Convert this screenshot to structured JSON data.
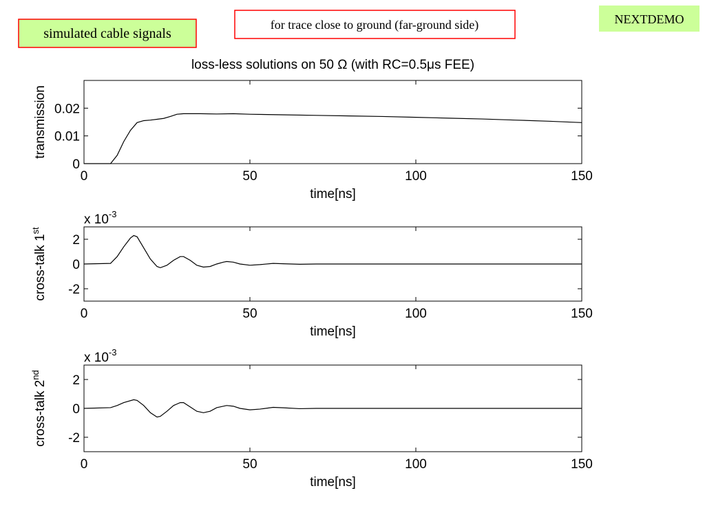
{
  "slide": {
    "label": "simulated cable signals",
    "note": "for trace close to ground (far-ground side)",
    "tag": "NEXTDEMO"
  },
  "chart_data": [
    {
      "type": "line",
      "title": "loss-less solutions on 50 Ω (with RC=0.5μs FEE)",
      "ylabel": "transmission",
      "xlabel": "time[ns]",
      "color": "#000000",
      "xlim": [
        0,
        150
      ],
      "xticks": [
        0,
        50,
        100,
        150
      ],
      "ylim": [
        0,
        0.03
      ],
      "yticks": [
        0,
        0.01,
        0.02
      ],
      "x": [
        0,
        8,
        10,
        12,
        14,
        16,
        18,
        20,
        22,
        24,
        26,
        28,
        30,
        35,
        40,
        45,
        50,
        60,
        70,
        80,
        90,
        100,
        110,
        120,
        130,
        140,
        150
      ],
      "values": [
        0,
        0,
        0.003,
        0.008,
        0.012,
        0.0148,
        0.0155,
        0.0157,
        0.016,
        0.0163,
        0.017,
        0.0178,
        0.018,
        0.018,
        0.0179,
        0.018,
        0.0178,
        0.0176,
        0.0174,
        0.0172,
        0.017,
        0.0167,
        0.0164,
        0.0161,
        0.0157,
        0.0153,
        0.0148
      ]
    },
    {
      "type": "line",
      "ylabel": "cross-talk 1",
      "ylabel_superscript": "st",
      "xlabel": "time[ns]",
      "scale_label": "x 10",
      "scale_exponent": "-3",
      "color": "#000000",
      "xlim": [
        0,
        150
      ],
      "xticks": [
        0,
        50,
        100,
        150
      ],
      "ylim": [
        -3,
        3
      ],
      "yticks": [
        -2,
        0,
        2
      ],
      "x": [
        0,
        8,
        10,
        12,
        14,
        15,
        16,
        18,
        20,
        22,
        23,
        25,
        27,
        29,
        30,
        32,
        34,
        36,
        38,
        40,
        42,
        43,
        45,
        47,
        50,
        53,
        57,
        60,
        65,
        70,
        150
      ],
      "values": [
        0,
        0.05,
        0.6,
        1.4,
        2.1,
        2.3,
        2.2,
        1.3,
        0.4,
        -0.2,
        -0.3,
        -0.1,
        0.3,
        0.6,
        0.6,
        0.3,
        -0.1,
        -0.25,
        -0.2,
        0,
        0.15,
        0.2,
        0.15,
        0,
        -0.1,
        -0.05,
        0.05,
        0.02,
        -0.02,
        0,
        0
      ]
    },
    {
      "type": "line",
      "ylabel": "cross-talk 2",
      "ylabel_superscript": "nd",
      "xlabel": "time[ns]",
      "scale_label": "x 10",
      "scale_exponent": "-3",
      "color": "#000000",
      "xlim": [
        0,
        150
      ],
      "xticks": [
        0,
        50,
        100,
        150
      ],
      "ylim": [
        -3,
        3
      ],
      "yticks": [
        -2,
        0,
        2
      ],
      "x": [
        0,
        8,
        10,
        12,
        15,
        16,
        18,
        20,
        22,
        23,
        25,
        27,
        29,
        30,
        32,
        34,
        36,
        38,
        40,
        43,
        45,
        47,
        50,
        53,
        57,
        60,
        65,
        70,
        150
      ],
      "values": [
        0,
        0.05,
        0.2,
        0.4,
        0.6,
        0.55,
        0.2,
        -0.3,
        -0.6,
        -0.55,
        -0.2,
        0.2,
        0.4,
        0.4,
        0.1,
        -0.2,
        -0.3,
        -0.2,
        0.05,
        0.2,
        0.15,
        0,
        -0.1,
        -0.05,
        0.07,
        0.04,
        -0.02,
        0,
        0
      ]
    }
  ]
}
